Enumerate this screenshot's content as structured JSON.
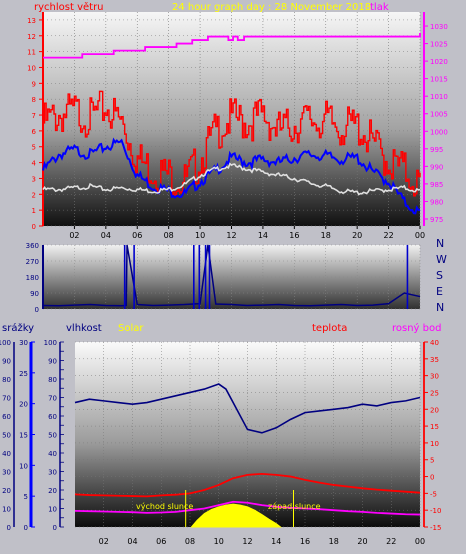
{
  "header": {
    "wind_label": "rychlost větru",
    "title": "24 hour graph day : 28 November 2018",
    "pressure_label": "tlak"
  },
  "compass": [
    "N",
    "W",
    "S",
    "E",
    "N"
  ],
  "bottom_header": {
    "rain_label": "srážky",
    "humidity_label": "vlhkost",
    "solar_label": "Solar",
    "temp_label": "teplota",
    "dew_label": "rosný bod"
  },
  "annotations": {
    "sunrise": "východ slunce",
    "sunset": "západ slunce"
  },
  "colors": {
    "wind_gust": "#ff0000",
    "wind_avg": "#0000ff",
    "wind_dir": "#000080",
    "pressure": "#ff00ff",
    "temp": "#ff0000",
    "dew": "#ff00ff",
    "humidity": "#000080",
    "solar": "#ffff00",
    "header_title": "#ffff00"
  },
  "chart_data": [
    {
      "type": "line",
      "x_tick_labels": [
        "02",
        "04",
        "06",
        "08",
        "10",
        "12",
        "14",
        "16",
        "18",
        "20",
        "22",
        "00"
      ],
      "x_hours": [
        2,
        4,
        6,
        8,
        10,
        12,
        14,
        16,
        18,
        20,
        22,
        24
      ],
      "y_left_ticks": [
        0,
        1,
        2,
        3,
        4,
        5,
        6,
        7,
        8,
        9,
        10,
        11,
        12,
        13
      ],
      "y_right_ticks": [
        975,
        980,
        985,
        990,
        995,
        1000,
        1005,
        1010,
        1015,
        1020,
        1025,
        1030
      ],
      "y_left_range": [
        0,
        13.5
      ],
      "y_right_range": [
        973,
        1034
      ],
      "series": [
        {
          "name": "rychlost větru",
          "axis": "left",
          "x": [
            0,
            1,
            2,
            3,
            4,
            5,
            6,
            7,
            8,
            9,
            10,
            11,
            12,
            13,
            14,
            15,
            16,
            17,
            18,
            19,
            20,
            21,
            22,
            23,
            24
          ],
          "values": [
            6.5,
            7,
            7.2,
            6.8,
            7.5,
            6.5,
            4.2,
            3.5,
            3.2,
            2.8,
            4.2,
            6,
            6.8,
            6.5,
            7,
            6,
            6.4,
            6.7,
            6.6,
            6.2,
            6.3,
            5.2,
            4,
            3.5,
            2.5
          ]
        },
        {
          "axis": "left",
          "x": [
            0,
            1,
            2,
            3,
            4,
            5,
            6,
            7,
            8,
            9,
            10,
            11,
            12,
            13,
            14,
            15,
            16,
            17,
            18,
            19,
            20,
            21,
            22,
            23,
            24
          ],
          "values": [
            3.5,
            4.5,
            4.8,
            4.5,
            5,
            5.3,
            3.2,
            2.5,
            2.2,
            2,
            2.8,
            3.5,
            4.3,
            4,
            4.2,
            4,
            4.3,
            4.5,
            4.4,
            4.2,
            4.3,
            3.4,
            2.8,
            1.5,
            0.8
          ]
        },
        {
          "axis": "left",
          "x": [
            0,
            1,
            2,
            3,
            4,
            5,
            6,
            7,
            8,
            9,
            10,
            11,
            12,
            13,
            14,
            15,
            16,
            17,
            18,
            19,
            20,
            21,
            22,
            23,
            24
          ],
          "values": [
            2.3,
            2.3,
            2.4,
            2.5,
            2.3,
            2.4,
            2.3,
            2.2,
            2.3,
            2.6,
            3.2,
            3.6,
            3.8,
            3.6,
            3.4,
            3.2,
            3,
            2.7,
            2.5,
            2.2,
            2.1,
            2.2,
            2.3,
            2.4,
            2.2
          ]
        },
        {
          "name": "tlak",
          "axis": "right",
          "x": [
            0,
            1.5,
            2.5,
            4.5,
            6.5,
            8.5,
            9.5,
            10.5,
            11.5,
            11.8,
            12.1,
            12.4,
            12.8,
            24
          ],
          "values": [
            1021,
            1021,
            1022,
            1023,
            1024,
            1025,
            1026,
            1027,
            1027,
            1026,
            1027,
            1026,
            1027,
            1028
          ]
        }
      ]
    },
    {
      "type": "line",
      "x_tick_labels": [
        "02",
        "04",
        "06",
        "08",
        "10",
        "12",
        "14",
        "16",
        "18",
        "20",
        "22",
        "00"
      ],
      "x_hours": [
        2,
        4,
        6,
        8,
        10,
        12,
        14,
        16,
        18,
        20,
        22,
        24
      ],
      "y_ticks": [
        0,
        90,
        180,
        270,
        360
      ],
      "y_range": [
        0,
        360
      ],
      "series": [
        {
          "x": [
            0,
            1,
            2,
            3,
            4,
            5,
            5.3,
            5.35,
            6,
            7,
            8,
            9,
            10,
            10.5,
            11,
            12,
            13,
            14,
            15,
            16,
            17,
            18,
            19,
            20,
            21,
            22,
            23,
            24
          ],
          "values": [
            20,
            18,
            22,
            25,
            20,
            18,
            20,
            360,
            25,
            20,
            22,
            25,
            30,
            360,
            28,
            25,
            20,
            22,
            25,
            20,
            18,
            22,
            25,
            20,
            22,
            30,
            90,
            70
          ]
        }
      ]
    },
    {
      "type": "line",
      "x_tick_labels": [
        "02",
        "04",
        "06",
        "08",
        "10",
        "12",
        "14",
        "16",
        "18",
        "20",
        "22",
        "00"
      ],
      "x_hours": [
        2,
        4,
        6,
        8,
        10,
        12,
        14,
        16,
        18,
        20,
        22,
        24
      ],
      "y_rain_ticks": [
        0,
        10,
        20,
        30,
        40,
        50,
        60,
        70,
        80,
        90,
        100
      ],
      "y_humidity_ticks": [
        0,
        5,
        10,
        15,
        20,
        25,
        30
      ],
      "y_solar_ticks": [
        0,
        5,
        10,
        15,
        20,
        25,
        30,
        35,
        40,
        45,
        50,
        55,
        60,
        65,
        70,
        75,
        80,
        85,
        90,
        95,
        100
      ],
      "y_temp_ticks": [
        -15,
        -10,
        -5,
        0,
        5,
        10,
        15,
        20,
        25,
        30,
        35,
        40
      ],
      "y_temp_range": [
        -15,
        40
      ],
      "series": [
        {
          "name": "vlhkost",
          "axis": "temp",
          "x": [
            0,
            1,
            2,
            3,
            4,
            5,
            6,
            7,
            8,
            9,
            10,
            10.5,
            11,
            12,
            13,
            14,
            15,
            16,
            17,
            18,
            19,
            20,
            21,
            22,
            23,
            24
          ],
          "values": [
            22,
            23,
            22.5,
            22,
            21.5,
            22,
            23,
            24,
            25,
            26,
            27.5,
            26,
            22,
            14,
            13,
            14.5,
            17,
            19,
            19.5,
            20,
            20.5,
            21.5,
            21,
            22,
            22.5,
            23.5
          ]
        },
        {
          "name": "teplota",
          "axis": "temp",
          "x": [
            0,
            1,
            2,
            3,
            4,
            5,
            6,
            7,
            8,
            9,
            10,
            11,
            12,
            13,
            14,
            15,
            16,
            17,
            18,
            19,
            20,
            21,
            22,
            23,
            24
          ],
          "values": [
            -5.3,
            -5.5,
            -5.6,
            -5.7,
            -5.8,
            -5.9,
            -5.6,
            -5.4,
            -5,
            -4,
            -2.5,
            -0.5,
            0.5,
            0.8,
            0.5,
            0,
            -1,
            -1.8,
            -2.5,
            -3,
            -3.5,
            -3.9,
            -4.2,
            -4.5,
            -4.8
          ]
        },
        {
          "name": "rosný bod",
          "axis": "temp",
          "x": [
            0,
            1,
            2,
            3,
            4,
            5,
            6,
            7,
            8,
            9,
            10,
            11,
            12,
            13,
            14,
            15,
            16,
            17,
            18,
            19,
            20,
            21,
            22,
            23,
            24
          ],
          "values": [
            -10.2,
            -10.3,
            -10.4,
            -10.5,
            -10.6,
            -10.8,
            -10.7,
            -10.5,
            -10,
            -9.5,
            -8.5,
            -7.5,
            -7.8,
            -8.5,
            -9,
            -9.3,
            -9.5,
            -9.7,
            -10,
            -10.3,
            -10.5,
            -10.8,
            -11,
            -11.2,
            -11.3
          ]
        },
        {
          "name": "Solar",
          "type": "area",
          "axis": "temp",
          "x": [
            8.1,
            8.5,
            9,
            9.5,
            10,
            10.5,
            11,
            11.5,
            12,
            12.5,
            13,
            13.5,
            14,
            14.3
          ],
          "values": [
            -15,
            -13,
            -11,
            -9.8,
            -9,
            -8.5,
            -8.2,
            -8.5,
            -9,
            -10,
            -11.3,
            -12.7,
            -14,
            -15
          ]
        }
      ],
      "markers": {
        "sunrise": 7.7,
        "sunset": 15.2
      }
    }
  ]
}
